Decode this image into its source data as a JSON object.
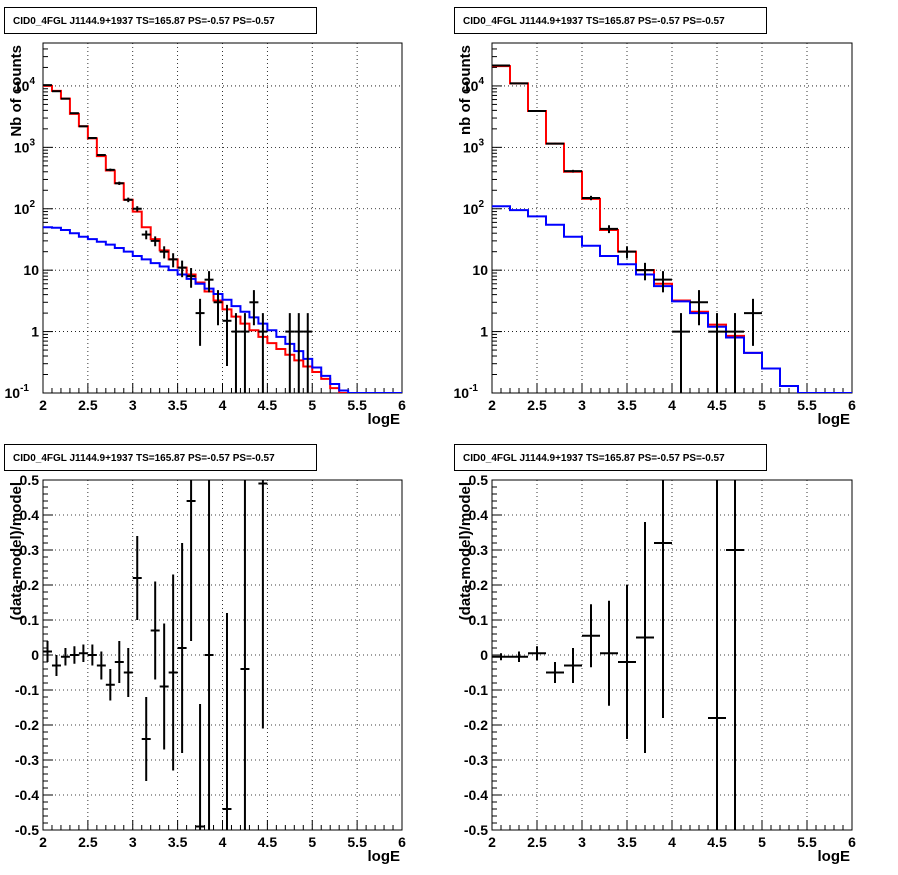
{
  "chart_data": [
    {
      "type": "step-histogram-with-errorbars",
      "title": "CID0_4FGL J1144.9+1937 TS=165.87 PS=-0.57 PS=-0.57",
      "xlabel": "logE",
      "ylabel": "Nb of counts",
      "xlim": [
        2,
        6
      ],
      "ylim": [
        0.1,
        50000
      ],
      "yscale": "log",
      "grid": true,
      "xticks": [
        "2",
        "2.5",
        "3",
        "3.5",
        "4",
        "4.5",
        "5",
        "5.5",
        "6"
      ],
      "yticks": [
        {
          "v": 0.1,
          "b": "10",
          "e": "-1"
        },
        {
          "v": 1,
          "b": "1",
          "e": ""
        },
        {
          "v": 10,
          "b": "10",
          "e": ""
        },
        {
          "v": 100,
          "b": "10",
          "e": "2"
        },
        {
          "v": 1000,
          "b": "10",
          "e": "3"
        },
        {
          "v": 10000,
          "b": "10",
          "e": "4"
        }
      ],
      "bin_edges": [
        2.0,
        2.1,
        2.2,
        2.3,
        2.4,
        2.5,
        2.6,
        2.7,
        2.8,
        2.9,
        3.0,
        3.1,
        3.2,
        3.3,
        3.4,
        3.5,
        3.6,
        3.7,
        3.8,
        3.9,
        4.0,
        4.1,
        4.2,
        4.3,
        4.4,
        4.5,
        4.6,
        4.7,
        4.8,
        4.9,
        5.0,
        5.1,
        5.2,
        5.3,
        5.4,
        5.5,
        5.6,
        5.7,
        5.8,
        5.9,
        6.0
      ],
      "series": [
        {
          "name": "",
          "color": "#ff0000",
          "style": "step",
          "values": [
            10000,
            8300,
            6200,
            3500,
            2200,
            1400,
            720,
            420,
            260,
            140,
            90,
            50,
            32,
            21,
            15,
            11,
            8.5,
            6.3,
            4.5,
            3.2,
            2.3,
            1.75,
            1.35,
            1.05,
            0.82,
            0.65,
            0.52,
            0.42,
            0.34,
            0.27,
            0.22,
            0.17,
            0.12,
            0.1,
            0.1,
            0.1,
            0.1,
            0.1,
            0.1,
            0.1
          ]
        },
        {
          "name": "",
          "color": "#0000ff",
          "style": "step",
          "values": [
            50,
            49,
            45,
            40,
            35,
            32,
            29,
            26,
            23,
            20,
            17,
            15,
            13,
            11.5,
            10,
            8.5,
            7.2,
            6,
            5,
            4.1,
            3.3,
            2.6,
            2.1,
            1.7,
            1.35,
            1.05,
            0.82,
            0.63,
            0.48,
            0.36,
            0.26,
            0.19,
            0.14,
            0.11,
            0.1,
            0.1,
            0.1,
            0.1,
            0.1,
            0.1
          ]
        },
        {
          "name": "",
          "color": "#000000",
          "style": "errorbar",
          "points": [
            [
              2.05,
              10300
            ],
            [
              2.15,
              8200
            ],
            [
              2.25,
              6200
            ],
            [
              2.35,
              3600
            ],
            [
              2.45,
              2200
            ],
            [
              2.55,
              1420
            ],
            [
              2.65,
              750
            ],
            [
              2.75,
              430
            ],
            [
              2.85,
              260
            ],
            [
              2.95,
              140
            ],
            [
              3.05,
              100
            ],
            [
              3.15,
              38
            ],
            [
              3.25,
              30
            ],
            [
              3.35,
              20
            ],
            [
              3.45,
              15
            ],
            [
              3.55,
              11
            ],
            [
              3.65,
              8
            ],
            [
              3.75,
              2
            ],
            [
              3.85,
              7
            ],
            [
              3.95,
              3
            ],
            [
              4.05,
              1.5
            ],
            [
              4.15,
              1
            ],
            [
              4.25,
              1
            ],
            [
              4.35,
              3
            ],
            [
              4.45,
              1
            ],
            [
              4.75,
              1
            ],
            [
              4.85,
              1
            ],
            [
              4.95,
              1
            ]
          ]
        }
      ]
    },
    {
      "type": "step-histogram-with-errorbars",
      "title": "CID0_4FGL J1144.9+1937 TS=165.87 PS=-0.57 PS=-0.57",
      "xlabel": "logE",
      "ylabel": "nb of counts",
      "xlim": [
        2,
        6
      ],
      "ylim": [
        0.1,
        50000
      ],
      "yscale": "log",
      "grid": true,
      "xticks": [
        "2",
        "2.5",
        "3",
        "3.5",
        "4",
        "4.5",
        "5",
        "5.5",
        "6"
      ],
      "yticks": [
        {
          "v": 0.1,
          "b": "10",
          "e": "-1"
        },
        {
          "v": 1,
          "b": "1",
          "e": ""
        },
        {
          "v": 10,
          "b": "10",
          "e": ""
        },
        {
          "v": 100,
          "b": "10",
          "e": "2"
        },
        {
          "v": 1000,
          "b": "10",
          "e": "3"
        },
        {
          "v": 10000,
          "b": "10",
          "e": "4"
        }
      ],
      "bin_edges": [
        2.0,
        2.2,
        2.4,
        2.6,
        2.8,
        3.0,
        3.2,
        3.4,
        3.6,
        3.8,
        4.0,
        4.2,
        4.4,
        4.6,
        4.8,
        5.0,
        5.2,
        5.4,
        5.6,
        5.8,
        6.0
      ],
      "series": [
        {
          "name": "",
          "color": "#ff0000",
          "style": "step",
          "values": [
            21000,
            11000,
            3900,
            1150,
            400,
            145,
            45,
            20,
            10,
            6,
            3.2,
            2.1,
            1.3,
            0.85,
            0.45,
            0.25,
            0.13,
            0.1,
            0.1,
            0.1
          ]
        },
        {
          "name": "",
          "color": "#0000ff",
          "style": "step",
          "values": [
            110,
            95,
            75,
            55,
            35,
            25,
            17,
            12.5,
            8.5,
            5.5,
            3.1,
            2,
            1.2,
            0.8,
            0.45,
            0.25,
            0.13,
            0.1,
            0.1,
            0.1
          ]
        },
        {
          "name": "",
          "color": "#000000",
          "style": "errorbar",
          "points": [
            [
              2.1,
              21500
            ],
            [
              2.3,
              11000
            ],
            [
              2.5,
              3900
            ],
            [
              2.7,
              1150
            ],
            [
              2.9,
              410
            ],
            [
              3.1,
              150
            ],
            [
              3.3,
              47
            ],
            [
              3.5,
              20
            ],
            [
              3.7,
              10
            ],
            [
              3.9,
              7
            ],
            [
              4.1,
              1
            ],
            [
              4.3,
              3
            ],
            [
              4.5,
              1
            ],
            [
              4.7,
              1
            ],
            [
              4.9,
              2
            ]
          ]
        }
      ]
    },
    {
      "type": "errorbar",
      "title": "CID0_4FGL J1144.9+1937 TS=165.87 PS=-0.57 PS=-0.57",
      "xlabel": "logE",
      "ylabel": "(data-model)/model",
      "xlim": [
        2,
        6
      ],
      "ylim": [
        -0.5,
        0.5
      ],
      "yscale": "linear",
      "grid": true,
      "xticks": [
        "2",
        "2.5",
        "3",
        "3.5",
        "4",
        "4.5",
        "5",
        "5.5",
        "6"
      ],
      "yticks_linear": [
        "-0.5",
        "-0.4",
        "-0.3",
        "-0.2",
        "-0.1",
        "0",
        "0.1",
        "0.2",
        "0.3",
        "0.4",
        "0.5"
      ],
      "series": [
        {
          "name": "",
          "color": "#000000",
          "style": "errorbar",
          "halfwidth": 0.05,
          "points": [
            [
              2.05,
              0.01,
              0.03
            ],
            [
              2.15,
              -0.03,
              0.03
            ],
            [
              2.25,
              -0.005,
              0.025
            ],
            [
              2.35,
              0.0,
              0.025
            ],
            [
              2.45,
              0.005,
              0.025
            ],
            [
              2.55,
              0.0,
              0.03
            ],
            [
              2.65,
              -0.03,
              0.04
            ],
            [
              2.75,
              -0.085,
              0.045
            ],
            [
              2.85,
              -0.02,
              0.06
            ],
            [
              2.95,
              -0.05,
              0.07
            ],
            [
              3.05,
              0.22,
              0.12
            ],
            [
              3.15,
              -0.24,
              0.12
            ],
            [
              3.25,
              0.07,
              0.14
            ],
            [
              3.35,
              -0.09,
              0.18
            ],
            [
              3.45,
              -0.05,
              0.28
            ],
            [
              3.55,
              0.02,
              0.3
            ],
            [
              3.65,
              0.44,
              0.4
            ],
            [
              3.75,
              -0.49,
              0.35
            ],
            [
              3.85,
              0.0,
              0.55
            ],
            [
              4.05,
              -0.44,
              0.56
            ],
            [
              4.25,
              -0.04,
              0.65
            ],
            [
              4.45,
              0.49,
              0.7
            ]
          ]
        }
      ]
    },
    {
      "type": "errorbar",
      "title": "CID0_4FGL J1144.9+1937 TS=165.87 PS=-0.57 PS=-0.57",
      "xlabel": "logE",
      "ylabel": "(data-model)/model",
      "xlim": [
        2,
        6
      ],
      "ylim": [
        -0.5,
        0.5
      ],
      "yscale": "linear",
      "grid": true,
      "xticks": [
        "2",
        "2.5",
        "3",
        "3.5",
        "4",
        "4.5",
        "5",
        "5.5",
        "6"
      ],
      "yticks_linear": [
        "-0.5",
        "-0.4",
        "-0.3",
        "-0.2",
        "-0.1",
        "0",
        "0.1",
        "0.2",
        "0.3",
        "0.4",
        "0.5"
      ],
      "series": [
        {
          "name": "",
          "color": "#000000",
          "style": "errorbar",
          "halfwidth": 0.1,
          "points": [
            [
              2.1,
              -0.005,
              0.01
            ],
            [
              2.3,
              -0.005,
              0.015
            ],
            [
              2.5,
              0.005,
              0.02
            ],
            [
              2.7,
              -0.05,
              0.03
            ],
            [
              2.9,
              -0.03,
              0.05
            ],
            [
              3.1,
              0.055,
              0.09
            ],
            [
              3.3,
              0.005,
              0.15
            ],
            [
              3.5,
              -0.02,
              0.22
            ],
            [
              3.7,
              0.05,
              0.33
            ],
            [
              3.9,
              0.32,
              0.5
            ],
            [
              4.5,
              -0.18,
              0.9
            ],
            [
              4.7,
              0.3,
              0.9
            ]
          ]
        }
      ]
    }
  ]
}
